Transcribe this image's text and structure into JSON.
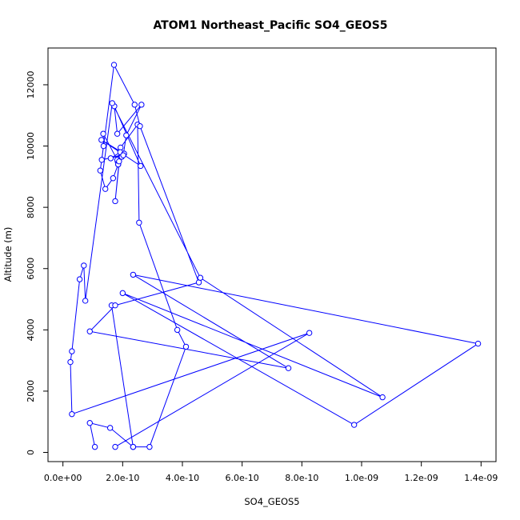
{
  "chart_data": {
    "type": "line",
    "title": "ATOM1 Northeast_Pacific SO4_GEOS5",
    "xlabel": "SO4_GEOS5",
    "ylabel": "Altitude (m)",
    "xlim": [
      -5e-11,
      1.45e-09
    ],
    "ylim": [
      -300,
      13200
    ],
    "xticks": [
      0,
      2e-10,
      4e-10,
      6e-10,
      8e-10,
      1e-09,
      1.2e-09,
      1.4e-09
    ],
    "xtick_labels": [
      "0.0e+00",
      "2.0e-10",
      "4.0e-10",
      "6.0e-10",
      "8.0e-10",
      "1.0e-09",
      "1.2e-09",
      "1.4e-09"
    ],
    "yticks": [
      0,
      2000,
      4000,
      6000,
      8000,
      10000,
      12000
    ],
    "ytick_labels": [
      "0",
      "2000",
      "4000",
      "6000",
      "8000",
      "10000",
      "12000"
    ],
    "grid": false,
    "colors": {
      "series": "#0000ff",
      "axes": "#000000",
      "background": "#ffffff"
    },
    "series": [
      {
        "marker": "open-circle",
        "line": true,
        "x": [
          1.07e-10,
          9e-11,
          1.58e-10,
          2.35e-10,
          1.63e-10,
          2.35e-10,
          2.9e-10,
          4.12e-10,
          3.83e-10,
          2.55e-10,
          2.5e-10,
          1.93e-10,
          1.83e-10,
          1.85e-10,
          1.97e-10,
          1.85e-10,
          1.68e-10,
          1.42e-10,
          1.25e-10,
          1.36e-10,
          1.35e-10,
          1.82e-10,
          1.88e-10,
          1.75e-10,
          1.92e-10,
          1.6e-10,
          2.05e-10,
          1.29e-10,
          2.6e-10,
          1.72e-10,
          1.82e-10,
          2.63e-10,
          2.12e-10,
          2.02e-10,
          1.3e-10,
          1.71e-10,
          2.4e-10,
          2.58e-10,
          4.55e-10,
          1.75e-10,
          9e-11,
          7.55e-10,
          2.35e-10,
          1.39e-09,
          9.75e-10,
          2e-10,
          1.07e-09,
          4.6e-10,
          1.65e-10,
          7.5e-11,
          7e-11,
          5.6e-11,
          3e-11,
          2.5e-11,
          3e-11,
          8.25e-10,
          1.75e-10
        ],
        "y": [
          180,
          960,
          800,
          180,
          4800,
          180,
          180,
          3450,
          4000,
          7500,
          10700,
          9950,
          9500,
          9400,
          9650,
          9400,
          8950,
          8600,
          9200,
          10000,
          10400,
          9550,
          9500,
          8200,
          9800,
          9600,
          9750,
          10200,
          9350,
          11300,
          10400,
          11350,
          10350,
          9700,
          9550,
          12650,
          11350,
          10650,
          5550,
          4800,
          3950,
          2750,
          5800,
          3550,
          900,
          5200,
          1800,
          5700,
          11400,
          4950,
          6100,
          5650,
          3300,
          2950,
          1250,
          3900,
          180
        ]
      }
    ]
  }
}
